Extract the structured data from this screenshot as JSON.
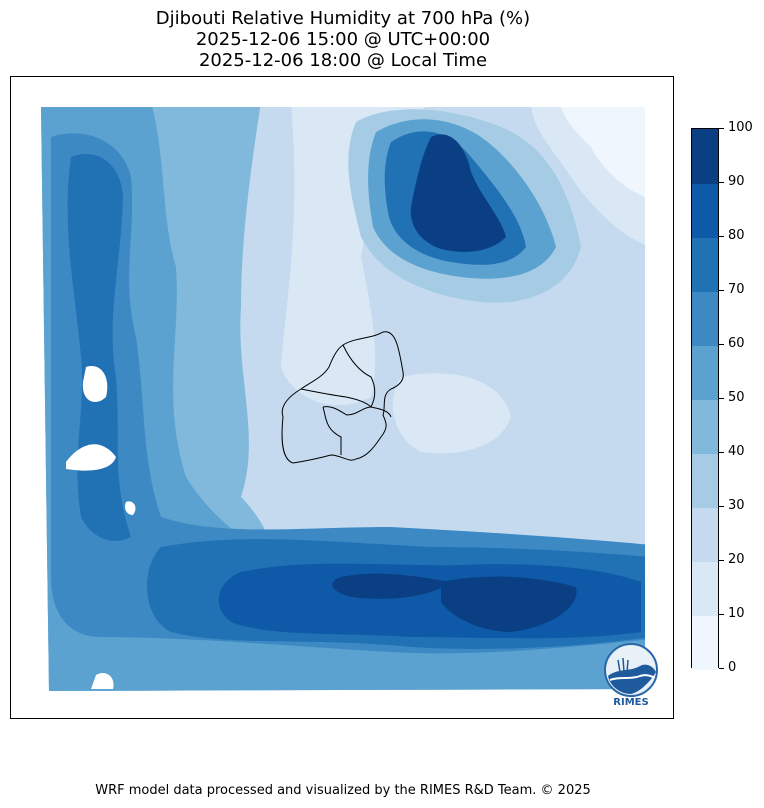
{
  "title": {
    "line1": "Djibouti Relative Humidity at 700 hPa (%)",
    "line2": "2025-12-06 15:00 @ UTC+00:00",
    "line3": "2025-12-06 18:00 @ Local Time"
  },
  "colorbar": {
    "variable": "Relative Humidity at 700 hPa",
    "unit": "%",
    "levels": [
      0,
      10,
      20,
      30,
      40,
      50,
      60,
      70,
      80,
      90,
      100
    ],
    "labels": [
      "0",
      "10",
      "20",
      "30",
      "40",
      "50",
      "60",
      "70",
      "80",
      "90",
      "100"
    ],
    "colors": [
      "#f0f6fd",
      "#dae8f6",
      "#c5daef",
      "#a5cce4",
      "#81b9dc",
      "#5ca2d0",
      "#3c89c4",
      "#2171b5",
      "#0f5aa8",
      "#0a3f84"
    ]
  },
  "logo": {
    "text": "RIMES"
  },
  "footer": {
    "credit": "WRF model data processed and visualized by the RIMES R&D Team. © 2025"
  }
}
